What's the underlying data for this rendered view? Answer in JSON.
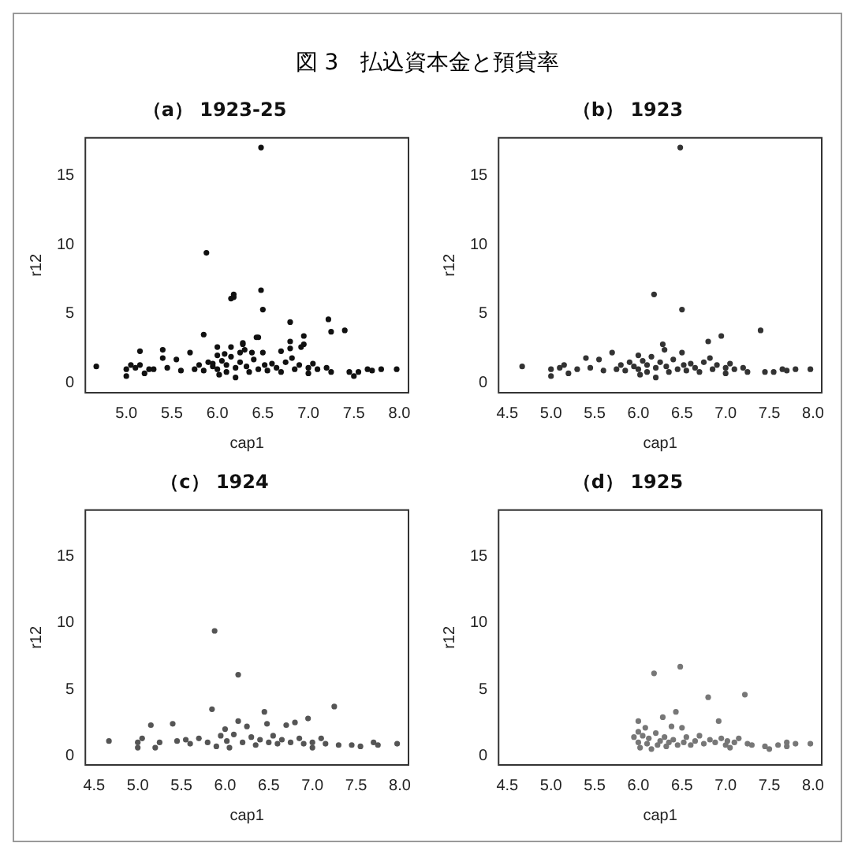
{
  "chart_data": [
    {
      "type": "scatter",
      "title": "（a） 1923-25",
      "annotations": [
        "図 3　払込資本金と預貸率"
      ],
      "xlabel": "cap1",
      "ylabel": "r12",
      "xlim": [
        4.55,
        8.1
      ],
      "xticks": [
        {
          "value": 5,
          "label": "5.0"
        },
        5.5,
        {
          "value": 6,
          "label": "6.0"
        },
        6.5,
        {
          "value": 7,
          "label": "7.0"
        },
        7.5,
        {
          "value": 8,
          "label": "8.0"
        }
      ],
      "ylim": [
        -0.7,
        17.7
      ],
      "yticks": [
        0,
        5,
        10,
        15
      ],
      "marker": "circle",
      "series": [
        {
          "color": "#111111",
          "x": [
            4.67,
            5.0,
            5.0,
            5.1,
            5.15,
            5.2,
            5.3,
            5.4,
            5.45,
            5.55,
            5.6,
            5.7,
            5.75,
            5.8,
            5.85,
            5.9,
            5.95,
            6.0,
            6.0,
            6.02,
            6.05,
            6.1,
            6.1,
            6.15,
            6.18,
            6.2,
            6.2,
            6.25,
            6.28,
            6.3,
            6.32,
            6.35,
            6.4,
            6.45,
            6.48,
            6.5,
            6.5,
            6.52,
            6.55,
            6.6,
            6.65,
            6.7,
            6.75,
            6.8,
            6.82,
            6.85,
            6.9,
            6.95,
            7.0,
            7.0,
            7.05,
            7.1,
            7.2,
            7.25,
            7.4,
            7.45,
            7.55,
            7.65,
            7.7,
            7.8,
            7.97,
            5.05,
            5.15,
            5.25,
            5.4,
            5.85,
            5.88,
            6.15,
            6.15,
            6.25,
            6.45,
            6.7,
            6.8,
            6.95,
            7.25,
            5.95,
            6.0,
            6.08,
            6.18,
            6.28,
            6.38,
            6.43,
            6.48,
            6.8,
            6.92,
            7.22,
            7.5
          ],
          "values": [
            1.2,
            1.0,
            0.5,
            1.1,
            1.3,
            0.7,
            1.0,
            1.8,
            1.1,
            1.7,
            0.9,
            2.2,
            1.0,
            1.3,
            0.9,
            1.5,
            1.2,
            2.0,
            1.0,
            0.6,
            1.6,
            1.3,
            0.8,
            1.9,
            6.4,
            1.1,
            0.4,
            1.5,
            2.8,
            2.4,
            1.2,
            0.8,
            1.7,
            1.0,
            17.0,
            5.3,
            2.2,
            1.3,
            0.9,
            1.4,
            1.1,
            0.8,
            1.5,
            3.0,
            1.8,
            1.0,
            1.3,
            3.4,
            1.1,
            0.7,
            1.4,
            1.0,
            1.1,
            0.8,
            3.8,
            0.8,
            0.8,
            1.0,
            0.9,
            1.0,
            1.0,
            1.3,
            2.3,
            1.0,
            2.4,
            3.5,
            9.4,
            6.1,
            2.6,
            2.2,
            3.3,
            2.3,
            2.5,
            2.8,
            3.7,
            1.4,
            2.6,
            2.1,
            6.2,
            2.9,
            2.2,
            3.3,
            6.7,
            4.4,
            2.6,
            4.6,
            0.5
          ]
        }
      ]
    },
    {
      "type": "scatter",
      "title": "（b） 1923",
      "xlabel": "cap1",
      "ylabel": "r12",
      "xlim": [
        4.4,
        8.1
      ],
      "xticks": [
        4.5,
        {
          "value": 5,
          "label": "5.0"
        },
        5.5,
        {
          "value": 6,
          "label": "6.0"
        },
        6.5,
        {
          "value": 7,
          "label": "7.0"
        },
        7.5,
        {
          "value": 8,
          "label": "8.0"
        }
      ],
      "ylim": [
        -0.7,
        17.7
      ],
      "yticks": [
        0,
        5,
        10,
        15
      ],
      "marker": "circle",
      "series": [
        {
          "color": "#333333",
          "x": [
            4.67,
            5.0,
            5.0,
            5.1,
            5.15,
            5.2,
            5.3,
            5.4,
            5.45,
            5.55,
            5.6,
            5.7,
            5.75,
            5.8,
            5.85,
            5.9,
            5.95,
            6.0,
            6.0,
            6.02,
            6.05,
            6.1,
            6.1,
            6.15,
            6.18,
            6.2,
            6.2,
            6.25,
            6.28,
            6.3,
            6.32,
            6.35,
            6.4,
            6.45,
            6.48,
            6.5,
            6.5,
            6.52,
            6.55,
            6.6,
            6.65,
            6.7,
            6.75,
            6.8,
            6.82,
            6.85,
            6.9,
            6.95,
            7.0,
            7.0,
            7.05,
            7.1,
            7.2,
            7.25,
            7.4,
            7.45,
            7.55,
            7.65,
            7.7,
            7.8,
            7.97
          ],
          "values": [
            1.2,
            1.0,
            0.5,
            1.1,
            1.3,
            0.7,
            1.0,
            1.8,
            1.1,
            1.7,
            0.9,
            2.2,
            1.0,
            1.3,
            0.9,
            1.5,
            1.2,
            2.0,
            1.0,
            0.6,
            1.6,
            1.3,
            0.8,
            1.9,
            6.4,
            1.1,
            0.4,
            1.5,
            2.8,
            2.4,
            1.2,
            0.8,
            1.7,
            1.0,
            17.0,
            5.3,
            2.2,
            1.3,
            0.9,
            1.4,
            1.1,
            0.8,
            1.5,
            3.0,
            1.8,
            1.0,
            1.3,
            3.4,
            1.1,
            0.7,
            1.4,
            1.0,
            1.1,
            0.8,
            3.8,
            0.8,
            0.8,
            1.0,
            0.9,
            1.0,
            1.0
          ]
        }
      ]
    },
    {
      "type": "scatter",
      "title": "（c） 1924",
      "xlabel": "cap1",
      "ylabel": "r12",
      "xlim": [
        4.4,
        8.1
      ],
      "xticks": [
        4.5,
        {
          "value": 5,
          "label": "5.0"
        },
        5.5,
        {
          "value": 6,
          "label": "6.0"
        },
        6.5,
        {
          "value": 7,
          "label": "7.0"
        },
        7.5,
        {
          "value": 8,
          "label": "8.0"
        }
      ],
      "ylim": [
        -0.7,
        18.5
      ],
      "yticks": [
        0,
        5,
        10,
        15
      ],
      "marker": "circle",
      "series": [
        {
          "color": "#555555",
          "x": [
            4.67,
            5.0,
            5.0,
            5.05,
            5.15,
            5.2,
            5.25,
            5.4,
            5.45,
            5.55,
            5.6,
            5.7,
            5.8,
            5.85,
            5.88,
            5.9,
            5.95,
            6.0,
            6.02,
            6.05,
            6.1,
            6.15,
            6.15,
            6.2,
            6.25,
            6.3,
            6.35,
            6.4,
            6.45,
            6.48,
            6.5,
            6.55,
            6.6,
            6.65,
            6.7,
            6.75,
            6.8,
            6.85,
            6.9,
            6.95,
            7.0,
            7.0,
            7.1,
            7.15,
            7.25,
            7.3,
            7.45,
            7.55,
            7.7,
            7.75,
            7.97
          ],
          "values": [
            1.1,
            1.0,
            0.6,
            1.3,
            2.3,
            0.6,
            1.0,
            2.4,
            1.1,
            1.2,
            0.9,
            1.3,
            1.0,
            3.5,
            9.4,
            0.7,
            1.5,
            2.0,
            1.1,
            0.6,
            1.6,
            6.1,
            2.6,
            1.0,
            2.2,
            1.4,
            0.8,
            1.2,
            3.3,
            2.4,
            1.0,
            1.5,
            0.9,
            1.2,
            2.3,
            1.0,
            2.5,
            1.3,
            0.9,
            2.8,
            1.0,
            0.6,
            1.3,
            0.9,
            3.7,
            0.8,
            0.8,
            0.7,
            1.0,
            0.8,
            0.9
          ]
        }
      ]
    },
    {
      "type": "scatter",
      "title": "（d） 1925",
      "xlabel": "cap1",
      "ylabel": "r12",
      "xlim": [
        4.4,
        8.1
      ],
      "xticks": [
        4.5,
        {
          "value": 5,
          "label": "5.0"
        },
        5.5,
        {
          "value": 6,
          "label": "6.0"
        },
        6.5,
        {
          "value": 7,
          "label": "7.0"
        },
        7.5,
        {
          "value": 8,
          "label": "8.0"
        }
      ],
      "ylim": [
        -0.7,
        18.5
      ],
      "yticks": [
        0,
        5,
        10,
        15
      ],
      "marker": "circle",
      "series": [
        {
          "color": "#777777",
          "x": [
            5.95,
            6.0,
            6.0,
            6.0,
            6.02,
            6.05,
            6.08,
            6.1,
            6.12,
            6.15,
            6.18,
            6.2,
            6.22,
            6.25,
            6.28,
            6.3,
            6.32,
            6.35,
            6.38,
            6.4,
            6.43,
            6.45,
            6.48,
            6.5,
            6.52,
            6.55,
            6.6,
            6.65,
            6.7,
            6.75,
            6.8,
            6.82,
            6.88,
            6.92,
            6.95,
            7.0,
            7.02,
            7.05,
            7.1,
            7.15,
            7.22,
            7.25,
            7.3,
            7.45,
            7.5,
            7.6,
            7.7,
            7.7,
            7.8,
            7.97
          ],
          "values": [
            1.4,
            2.6,
            1.8,
            1.0,
            0.6,
            1.5,
            2.1,
            0.9,
            1.3,
            0.5,
            6.2,
            1.7,
            0.8,
            1.1,
            2.9,
            1.4,
            0.7,
            1.0,
            2.2,
            1.2,
            3.3,
            0.8,
            6.7,
            2.1,
            1.0,
            1.4,
            0.8,
            1.1,
            1.5,
            0.9,
            4.4,
            1.2,
            1.0,
            2.6,
            1.3,
            0.8,
            1.1,
            0.6,
            1.0,
            1.3,
            4.6,
            0.9,
            0.8,
            0.7,
            0.5,
            0.8,
            1.0,
            0.7,
            0.9,
            0.9
          ]
        }
      ]
    }
  ]
}
